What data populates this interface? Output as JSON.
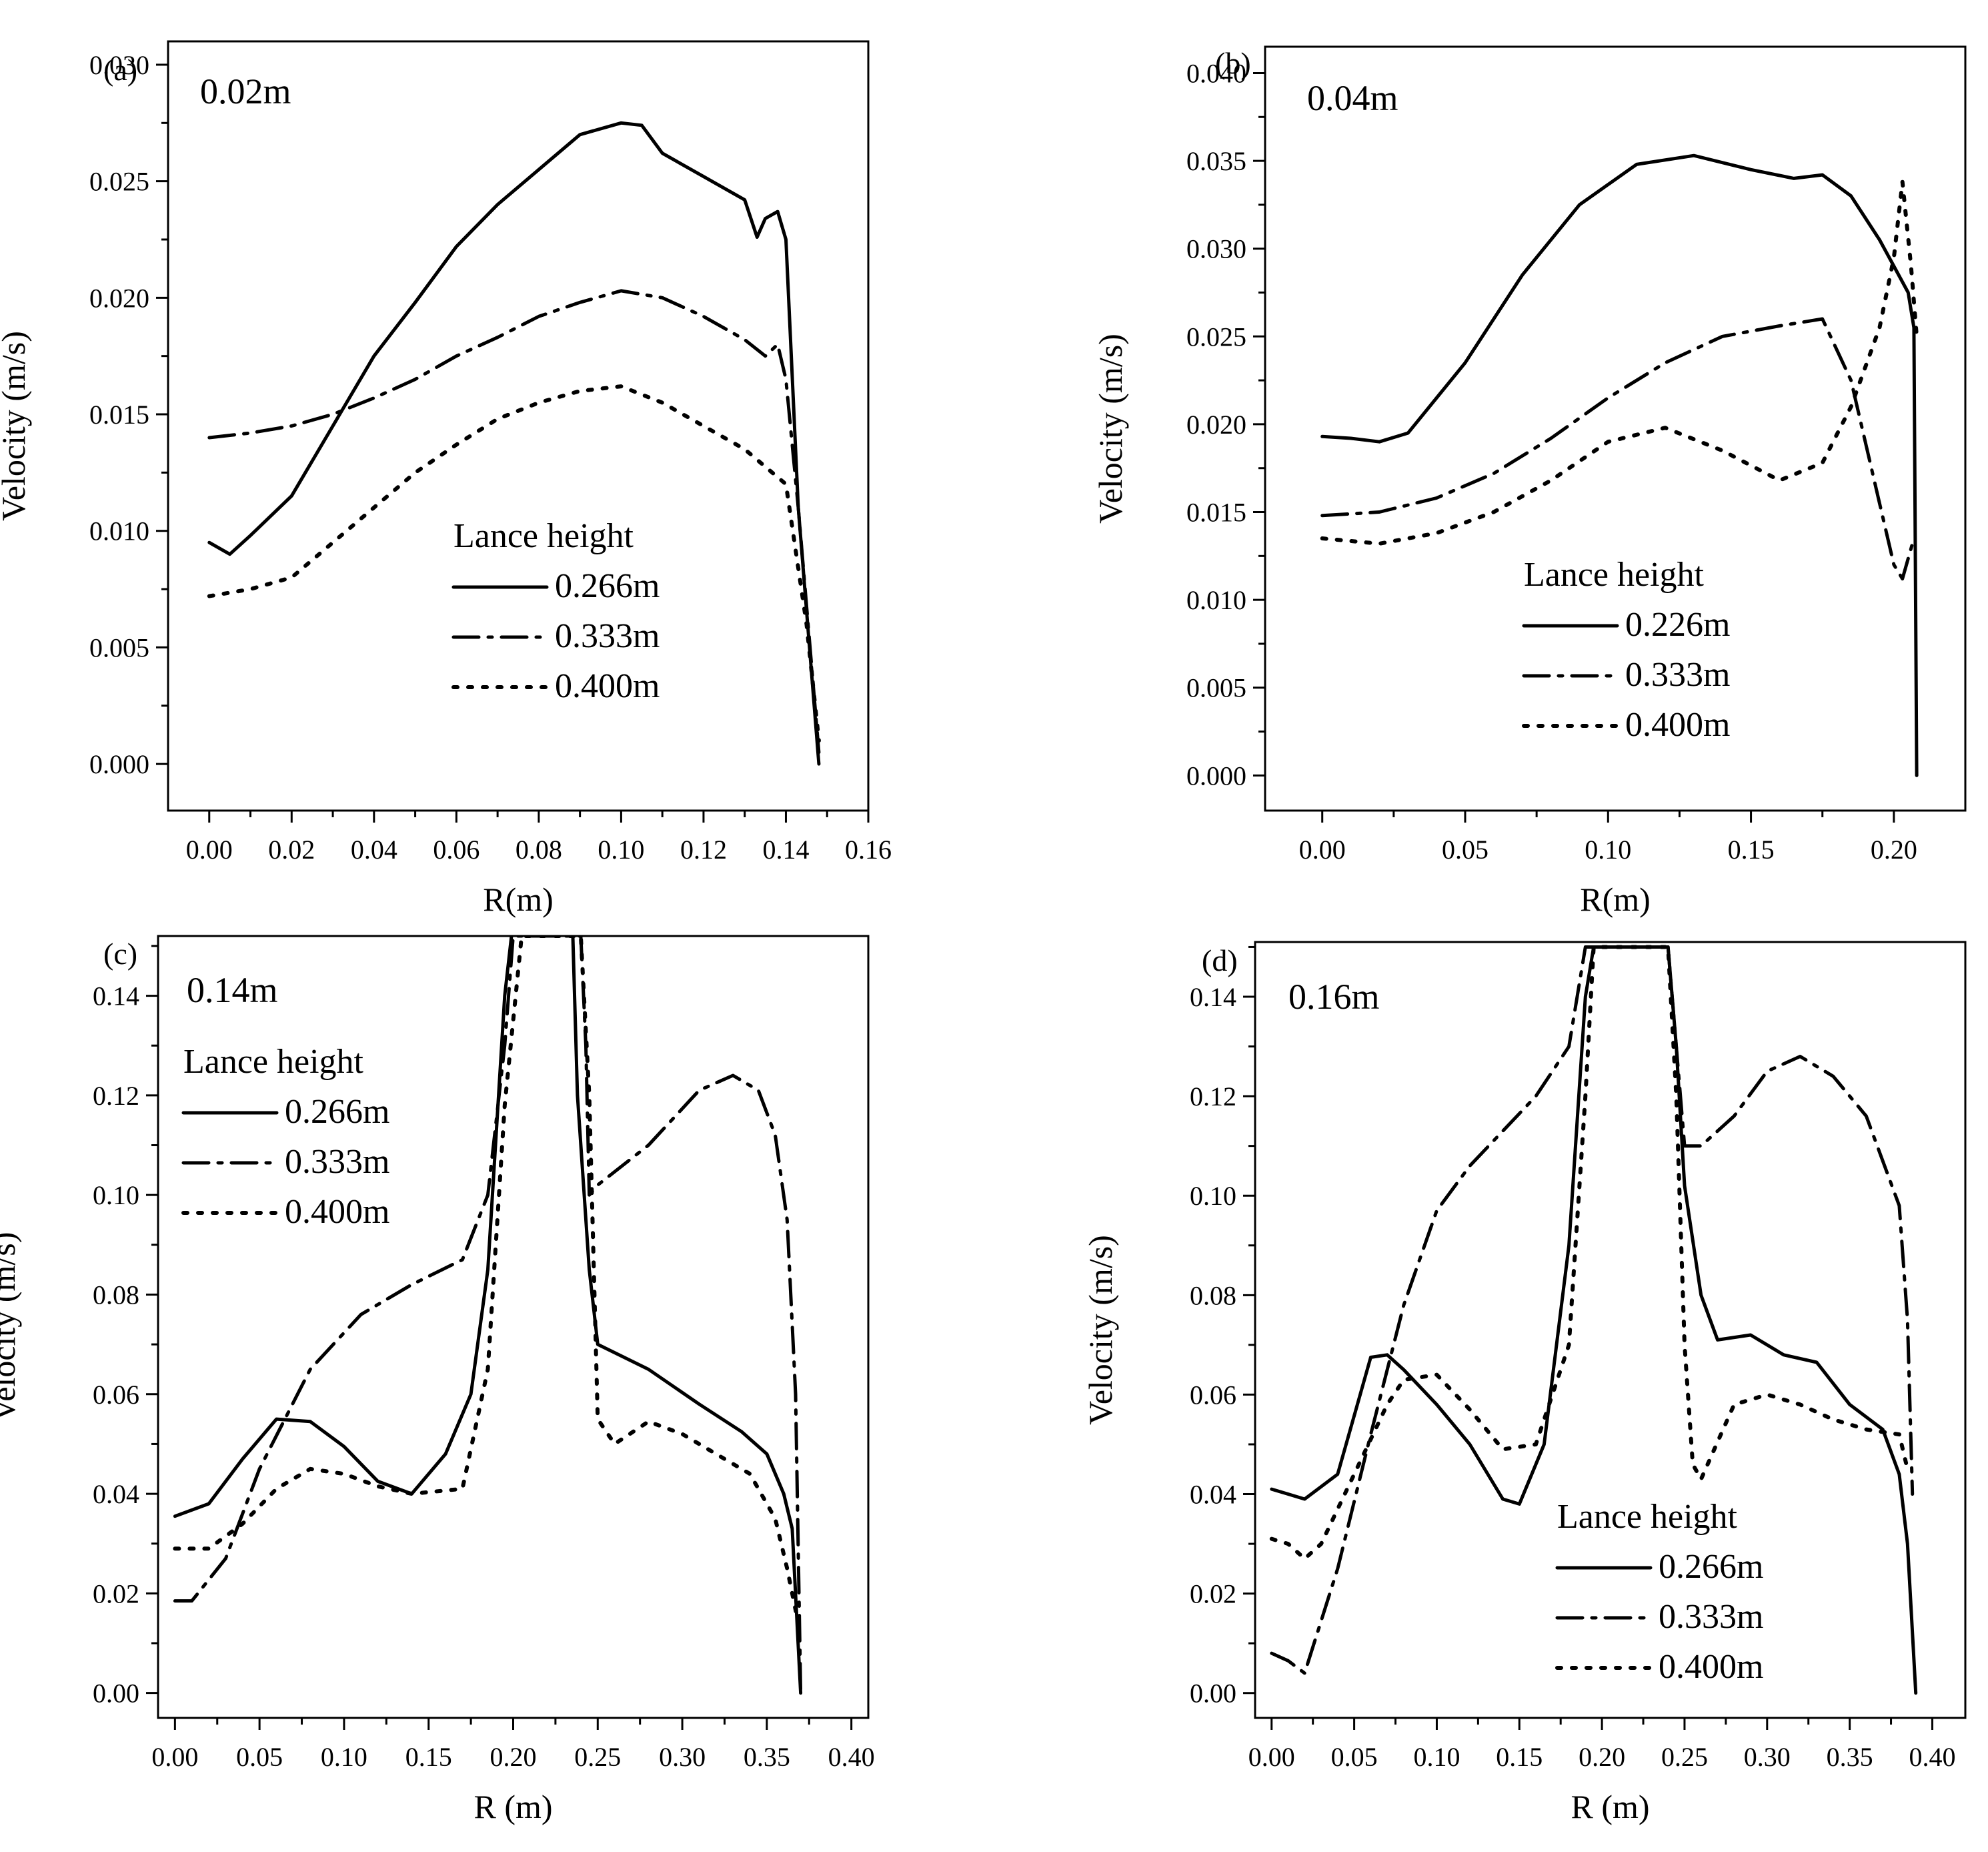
{
  "chart_data": [
    {
      "type": "line",
      "panel": "(a)",
      "depth_label": "0.02m",
      "xlabel": "R(m)",
      "ylabel": "Velocity (m/s)",
      "xlim": [
        -0.01,
        0.16
      ],
      "ylim": [
        -0.002,
        0.031
      ],
      "xticks": [
        0.0,
        0.02,
        0.04,
        0.06,
        0.08,
        0.1,
        0.12,
        0.14,
        0.16
      ],
      "xtick_labels": [
        "0.00",
        "0.02",
        "0.04",
        "0.06",
        "0.08",
        "0.10",
        "0.12",
        "0.14",
        "0.16"
      ],
      "yticks": [
        0.0,
        0.005,
        0.01,
        0.015,
        0.02,
        0.025,
        0.03
      ],
      "ytick_labels": [
        "0.000",
        "0.005",
        "0.010",
        "0.015",
        "0.020",
        "0.025",
        "0.030"
      ],
      "legend_title": "Lance height",
      "legend_position": "center-right",
      "series": [
        {
          "name": "0.266m",
          "style": "solid",
          "x": [
            0,
            0.005,
            0.01,
            0.02,
            0.03,
            0.04,
            0.05,
            0.06,
            0.07,
            0.08,
            0.09,
            0.1,
            0.105,
            0.11,
            0.12,
            0.13,
            0.133,
            0.135,
            0.138,
            0.14,
            0.143,
            0.148
          ],
          "y": [
            0.0095,
            0.009,
            0.0098,
            0.0115,
            0.0145,
            0.0175,
            0.0198,
            0.0222,
            0.024,
            0.0255,
            0.027,
            0.0275,
            0.0274,
            0.0262,
            0.0252,
            0.0242,
            0.0226,
            0.0234,
            0.0237,
            0.0225,
            0.011,
            0.0
          ]
        },
        {
          "name": "0.333m",
          "style": "dashdot",
          "x": [
            0,
            0.01,
            0.02,
            0.03,
            0.04,
            0.05,
            0.06,
            0.07,
            0.08,
            0.09,
            0.1,
            0.11,
            0.12,
            0.13,
            0.135,
            0.138,
            0.14,
            0.143,
            0.148
          ],
          "y": [
            0.014,
            0.0142,
            0.0145,
            0.015,
            0.0157,
            0.0165,
            0.0175,
            0.0183,
            0.0192,
            0.0198,
            0.0203,
            0.02,
            0.0192,
            0.0182,
            0.0175,
            0.018,
            0.0165,
            0.011,
            0.0005
          ]
        },
        {
          "name": "0.400m",
          "style": "dotted",
          "x": [
            0,
            0.01,
            0.02,
            0.03,
            0.04,
            0.05,
            0.06,
            0.07,
            0.08,
            0.09,
            0.1,
            0.11,
            0.12,
            0.13,
            0.14,
            0.145,
            0.148
          ],
          "y": [
            0.0072,
            0.0075,
            0.008,
            0.0095,
            0.011,
            0.0125,
            0.0137,
            0.0148,
            0.0155,
            0.016,
            0.0162,
            0.0155,
            0.0145,
            0.0135,
            0.012,
            0.006,
            0.001
          ]
        }
      ]
    },
    {
      "type": "line",
      "panel": "(b)",
      "depth_label": "0.04m",
      "xlabel": "R(m)",
      "ylabel": "Velocity (m/s)",
      "xlim": [
        -0.02,
        0.225
      ],
      "ylim": [
        -0.002,
        0.0415
      ],
      "xticks": [
        0.0,
        0.05,
        0.1,
        0.15,
        0.2
      ],
      "xtick_labels": [
        "0.00",
        "0.05",
        "0.10",
        "0.15",
        "0.20"
      ],
      "yticks": [
        0.0,
        0.005,
        0.01,
        0.015,
        0.02,
        0.025,
        0.03,
        0.035,
        0.04
      ],
      "ytick_labels": [
        "0.000",
        "0.005",
        "0.010",
        "0.015",
        "0.020",
        "0.025",
        "0.030",
        "0.035",
        "0.040"
      ],
      "legend_title": "Lance height",
      "legend_position": "lower-right",
      "series": [
        {
          "name": "0.226m",
          "style": "solid",
          "x": [
            0,
            0.01,
            0.02,
            0.03,
            0.05,
            0.07,
            0.09,
            0.11,
            0.13,
            0.15,
            0.165,
            0.175,
            0.185,
            0.195,
            0.2,
            0.205,
            0.207,
            0.208
          ],
          "y": [
            0.0193,
            0.0192,
            0.019,
            0.0195,
            0.0235,
            0.0285,
            0.0325,
            0.0348,
            0.0353,
            0.0345,
            0.034,
            0.0342,
            0.033,
            0.0305,
            0.029,
            0.0275,
            0.0255,
            0.0
          ]
        },
        {
          "name": "0.333m",
          "style": "dashdot",
          "x": [
            0,
            0.02,
            0.04,
            0.06,
            0.08,
            0.1,
            0.12,
            0.14,
            0.16,
            0.175,
            0.185,
            0.195,
            0.2,
            0.203,
            0.207
          ],
          "y": [
            0.0148,
            0.015,
            0.0158,
            0.0172,
            0.0192,
            0.0215,
            0.0235,
            0.025,
            0.0256,
            0.026,
            0.0225,
            0.0155,
            0.012,
            0.0112,
            0.0135
          ]
        },
        {
          "name": "0.400m",
          "style": "dotted",
          "x": [
            0,
            0.02,
            0.04,
            0.06,
            0.08,
            0.1,
            0.12,
            0.14,
            0.16,
            0.175,
            0.185,
            0.195,
            0.2,
            0.203,
            0.206,
            0.208
          ],
          "y": [
            0.0135,
            0.0132,
            0.0138,
            0.015,
            0.0168,
            0.019,
            0.0198,
            0.0185,
            0.0168,
            0.0178,
            0.021,
            0.0255,
            0.0295,
            0.0338,
            0.029,
            0.025
          ]
        }
      ]
    },
    {
      "type": "line",
      "panel": "(c)",
      "depth_label": "0.14m",
      "xlabel": "R (m)",
      "ylabel": "Velocity (m/s)",
      "xlim": [
        -0.01,
        0.41
      ],
      "ylim": [
        -0.005,
        0.152
      ],
      "xticks": [
        0.0,
        0.05,
        0.1,
        0.15,
        0.2,
        0.25,
        0.3,
        0.35,
        0.4
      ],
      "xtick_labels": [
        "0.00",
        "0.05",
        "0.10",
        "0.15",
        "0.20",
        "0.25",
        "0.30",
        "0.35",
        "0.40"
      ],
      "yticks": [
        0.0,
        0.02,
        0.04,
        0.06,
        0.08,
        0.1,
        0.12,
        0.14
      ],
      "ytick_labels": [
        "0.00",
        "0.02",
        "0.04",
        "0.06",
        "0.08",
        "0.10",
        "0.12",
        "0.14"
      ],
      "legend_title": "Lance height",
      "legend_position": "upper-left",
      "series": [
        {
          "name": "0.266m",
          "style": "solid",
          "x": [
            0,
            0.02,
            0.04,
            0.06,
            0.08,
            0.1,
            0.12,
            0.14,
            0.16,
            0.175,
            0.185,
            0.195,
            0.2,
            0.235,
            0.238,
            0.245,
            0.25,
            0.28,
            0.31,
            0.335,
            0.35,
            0.36,
            0.365,
            0.37
          ],
          "y": [
            0.0355,
            0.038,
            0.047,
            0.055,
            0.0545,
            0.0495,
            0.0425,
            0.04,
            0.048,
            0.06,
            0.085,
            0.14,
            0.155,
            0.155,
            0.12,
            0.085,
            0.07,
            0.065,
            0.058,
            0.0525,
            0.048,
            0.04,
            0.033,
            0.0
          ]
        },
        {
          "name": "0.333m",
          "style": "dashdot",
          "x": [
            0,
            0.01,
            0.03,
            0.05,
            0.08,
            0.11,
            0.14,
            0.17,
            0.185,
            0.195,
            0.2,
            0.24,
            0.243,
            0.245,
            0.25,
            0.28,
            0.31,
            0.33,
            0.345,
            0.355,
            0.362,
            0.367,
            0.37
          ],
          "y": [
            0.0185,
            0.0185,
            0.027,
            0.045,
            0.065,
            0.076,
            0.082,
            0.087,
            0.1,
            0.13,
            0.152,
            0.152,
            0.13,
            0.1,
            0.102,
            0.11,
            0.121,
            0.124,
            0.121,
            0.112,
            0.095,
            0.06,
            0.0
          ]
        },
        {
          "name": "0.400m",
          "style": "dotted",
          "x": [
            0,
            0.02,
            0.04,
            0.06,
            0.08,
            0.1,
            0.12,
            0.14,
            0.17,
            0.185,
            0.195,
            0.205,
            0.24,
            0.245,
            0.25,
            0.26,
            0.28,
            0.3,
            0.32,
            0.34,
            0.355,
            0.362,
            0.368
          ],
          "y": [
            0.029,
            0.029,
            0.034,
            0.041,
            0.045,
            0.044,
            0.0415,
            0.04,
            0.041,
            0.065,
            0.118,
            0.152,
            0.152,
            0.12,
            0.055,
            0.05,
            0.0545,
            0.052,
            0.048,
            0.044,
            0.035,
            0.025,
            0.015
          ]
        }
      ]
    },
    {
      "type": "line",
      "panel": "(d)",
      "depth_label": "0.16m",
      "xlabel": "R (m)",
      "ylabel": "Velocity (m/s)",
      "xlim": [
        -0.01,
        0.42
      ],
      "ylim": [
        -0.005,
        0.151
      ],
      "xticks": [
        0.0,
        0.05,
        0.1,
        0.15,
        0.2,
        0.25,
        0.3,
        0.35,
        0.4
      ],
      "xtick_labels": [
        "0.00",
        "0.05",
        "0.10",
        "0.15",
        "0.20",
        "0.25",
        "0.30",
        "0.35",
        "0.40"
      ],
      "yticks": [
        0.0,
        0.02,
        0.04,
        0.06,
        0.08,
        0.1,
        0.12,
        0.14
      ],
      "ytick_labels": [
        "0.00",
        "0.02",
        "0.04",
        "0.06",
        "0.08",
        "0.10",
        "0.12",
        "0.14"
      ],
      "legend_title": "Lance height",
      "legend_position": "lower-right",
      "series": [
        {
          "name": "0.266m",
          "style": "solid",
          "x": [
            0,
            0.01,
            0.02,
            0.04,
            0.06,
            0.07,
            0.08,
            0.1,
            0.12,
            0.14,
            0.15,
            0.165,
            0.18,
            0.19,
            0.195,
            0.24,
            0.245,
            0.25,
            0.26,
            0.27,
            0.29,
            0.31,
            0.33,
            0.35,
            0.37,
            0.38,
            0.385,
            0.39
          ],
          "y": [
            0.041,
            0.04,
            0.039,
            0.044,
            0.0675,
            0.068,
            0.065,
            0.058,
            0.05,
            0.039,
            0.038,
            0.05,
            0.09,
            0.14,
            0.15,
            0.15,
            0.13,
            0.102,
            0.08,
            0.071,
            0.072,
            0.068,
            0.0665,
            0.058,
            0.053,
            0.044,
            0.03,
            0.0
          ]
        },
        {
          "name": "0.333m",
          "style": "dashdot",
          "x": [
            0,
            0.01,
            0.02,
            0.04,
            0.06,
            0.08,
            0.1,
            0.12,
            0.14,
            0.16,
            0.18,
            0.19,
            0.24,
            0.245,
            0.25,
            0.26,
            0.28,
            0.3,
            0.32,
            0.34,
            0.36,
            0.38,
            0.385,
            0.388
          ],
          "y": [
            0.008,
            0.0065,
            0.004,
            0.025,
            0.052,
            0.078,
            0.097,
            0.106,
            0.113,
            0.12,
            0.13,
            0.15,
            0.15,
            0.13,
            0.11,
            0.11,
            0.116,
            0.125,
            0.128,
            0.124,
            0.116,
            0.098,
            0.075,
            0.04
          ]
        },
        {
          "name": "0.400m",
          "style": "dotted",
          "x": [
            0,
            0.01,
            0.02,
            0.03,
            0.05,
            0.07,
            0.08,
            0.1,
            0.12,
            0.14,
            0.16,
            0.18,
            0.19,
            0.195,
            0.24,
            0.245,
            0.25,
            0.255,
            0.26,
            0.28,
            0.3,
            0.32,
            0.34,
            0.36,
            0.38,
            0.385
          ],
          "y": [
            0.031,
            0.03,
            0.027,
            0.03,
            0.044,
            0.058,
            0.063,
            0.064,
            0.057,
            0.049,
            0.05,
            0.07,
            0.12,
            0.15,
            0.15,
            0.12,
            0.07,
            0.046,
            0.043,
            0.058,
            0.06,
            0.058,
            0.055,
            0.053,
            0.052,
            0.045
          ]
        }
      ]
    }
  ]
}
